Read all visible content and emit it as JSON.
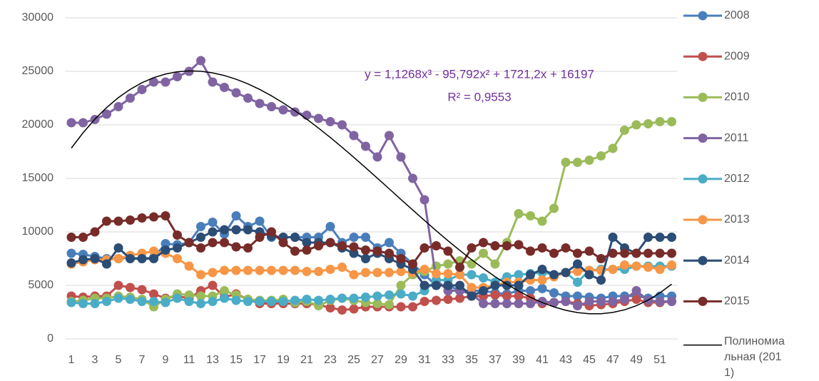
{
  "chart_data": {
    "type": "line",
    "annotations": [
      "y = 1,1268x³ - 95,792x² + 1721,2x + 16197",
      "R² = 0,9553"
    ],
    "annotation_color": "#7030a0",
    "categories": [
      1,
      null,
      3,
      null,
      5,
      null,
      7,
      null,
      9,
      null,
      11,
      null,
      13,
      null,
      15,
      null,
      17,
      null,
      19,
      null,
      21,
      null,
      23,
      null,
      25,
      null,
      27,
      null,
      29,
      null,
      31,
      null,
      33,
      null,
      35,
      null,
      37,
      null,
      39,
      null,
      41,
      null,
      43,
      null,
      45,
      null,
      47,
      null,
      49,
      null,
      51,
      null
    ],
    "ylim": [
      0,
      30000
    ],
    "yticks": [
      0,
      5000,
      10000,
      15000,
      20000,
      25000,
      30000
    ],
    "grid": true,
    "legend": "right",
    "series": [
      {
        "name": "2008",
        "color": "#4a7ebb",
        "markers": true,
        "values": [
          8000,
          7900,
          7700,
          7500,
          7500,
          7600,
          7500,
          7600,
          8900,
          8800,
          9000,
          10500,
          10900,
          9800,
          11500,
          10500,
          11000,
          9500,
          9500,
          9500,
          9500,
          9500,
          10500,
          9000,
          9500,
          9500,
          8500,
          9000,
          8000,
          7000,
          6000,
          5000,
          5000,
          4500,
          4500,
          4500,
          4300,
          4200,
          4500,
          4500,
          4700,
          4300,
          4000,
          4000,
          3900,
          3800,
          4000,
          4000,
          4000,
          3800,
          4000,
          4000
        ]
      },
      {
        "name": "2009",
        "color": "#c0504d",
        "markers": true,
        "values": [
          4000,
          3900,
          4000,
          4000,
          5000,
          4800,
          4600,
          4200,
          3800,
          4000,
          3800,
          4500,
          5000,
          3900,
          4200,
          3700,
          3300,
          3300,
          3300,
          3300,
          3300,
          3200,
          2900,
          2700,
          2800,
          3000,
          3000,
          3000,
          3000,
          3000,
          3500,
          3600,
          3700,
          3800,
          4000,
          4000,
          4100,
          4000,
          4000,
          3800,
          3300,
          3400,
          3500,
          3300,
          3100,
          3200,
          3300,
          3500,
          3700,
          3400,
          3400,
          3500
        ]
      },
      {
        "name": "2010",
        "color": "#9bbb59",
        "markers": true,
        "values": [
          3500,
          3600,
          3800,
          3800,
          4000,
          3900,
          3700,
          3000,
          3700,
          4200,
          4100,
          4000,
          4000,
          4500,
          4100,
          3700,
          3600,
          3600,
          3700,
          3400,
          3500,
          3100,
          3600,
          3800,
          3600,
          3400,
          3300,
          3200,
          5000,
          6000,
          6300,
          6800,
          7000,
          7300,
          7000,
          8000,
          7000,
          9000,
          11700,
          11500,
          11000,
          12200,
          16500,
          16500,
          16700,
          17100,
          17800,
          19500,
          20000,
          20100,
          20300,
          20300
        ]
      },
      {
        "name": "2011",
        "color": "#8064a2",
        "markers": true,
        "values": [
          20200,
          20200,
          20500,
          21000,
          21700,
          22500,
          23300,
          24000,
          24000,
          24500,
          25000,
          26000,
          24000,
          23500,
          23000,
          22500,
          22000,
          21700,
          21400,
          21200,
          20900,
          20600,
          20300,
          20000,
          19000,
          18000,
          17000,
          19000,
          17000,
          15000,
          13000,
          5500,
          4500,
          4500,
          4200,
          3300,
          3300,
          3300,
          3300,
          3300,
          3500,
          3400,
          3500,
          3100,
          3500,
          3500,
          3500,
          3700,
          4500,
          3600,
          3500,
          3500
        ]
      },
      {
        "name": "2012",
        "color": "#4bacc6",
        "markers": true,
        "values": [
          3400,
          3300,
          3300,
          3500,
          3800,
          3700,
          3500,
          3500,
          3400,
          3800,
          3500,
          3300,
          3500,
          3800,
          3600,
          3500,
          3500,
          3500,
          3500,
          3600,
          3700,
          3600,
          3700,
          3800,
          3800,
          3900,
          4000,
          4100,
          4200,
          4000,
          4500,
          5500,
          5500,
          6000,
          6000,
          5700,
          5300,
          5800,
          6000,
          6100,
          6200,
          6000,
          6200,
          5300,
          6400,
          6500,
          6500,
          6500,
          6800,
          6800,
          6800,
          6800
        ]
      },
      {
        "name": "2013",
        "color": "#f79646",
        "markers": true,
        "values": [
          7000,
          7200,
          7400,
          7400,
          7500,
          7800,
          8000,
          8200,
          8000,
          7500,
          6800,
          6000,
          6200,
          6400,
          6400,
          6400,
          6400,
          6400,
          6400,
          6400,
          6300,
          6300,
          6500,
          6700,
          6000,
          6200,
          6200,
          6200,
          6300,
          6200,
          6500,
          6100,
          6100,
          6000,
          4800,
          4800,
          5000,
          5300,
          5300,
          5500,
          5500,
          5800,
          6200,
          6300,
          6400,
          6400,
          6500,
          6900,
          6800,
          6700,
          6500,
          6900
        ]
      },
      {
        "name": "2014",
        "color": "#2c4d75",
        "markers": true,
        "values": [
          7100,
          7400,
          7500,
          7000,
          8500,
          7500,
          7500,
          7500,
          8300,
          8500,
          9000,
          9500,
          10000,
          10200,
          10200,
          10200,
          10000,
          9600,
          9500,
          9500,
          9000,
          9000,
          9000,
          8500,
          8000,
          7500,
          8000,
          7500,
          7000,
          6500,
          5000,
          5000,
          5000,
          5000,
          4000,
          4500,
          5000,
          5000,
          5000,
          6000,
          6500,
          6000,
          6200,
          7000,
          6000,
          5500,
          9500,
          8500,
          8000,
          9500,
          9500,
          9500
        ]
      },
      {
        "name": "2015",
        "color": "#772c2a",
        "markers": true,
        "values": [
          9500,
          9500,
          10000,
          11000,
          11000,
          11100,
          11300,
          11400,
          11500,
          9700,
          9000,
          8500,
          9000,
          9000,
          8600,
          8500,
          9500,
          10000,
          9000,
          8200,
          8300,
          8700,
          9000,
          8700,
          8600,
          8300,
          8200,
          8000,
          7500,
          7000,
          8500,
          8700,
          8200,
          6700,
          8500,
          9000,
          8700,
          8700,
          8800,
          8200,
          8500,
          8000,
          8500,
          8000,
          8200,
          7500,
          8000,
          8000,
          8000,
          8000,
          8000,
          8000
        ]
      },
      {
        "name": "Полиномиальная (2011)",
        "color": "#000000",
        "markers": false,
        "values": [
          17824,
          19265,
          20529,
          21621,
          22549,
          23319,
          23938,
          24413,
          24750,
          24957,
          25039,
          25005,
          24859,
          24611,
          24265,
          23829,
          23310,
          22714,
          22048,
          21319,
          20533,
          19698,
          18820,
          17907,
          16963,
          15997,
          15016,
          14025,
          13032,
          12044,
          11067,
          10107,
          9173,
          8270,
          7405,
          6586,
          5818,
          5109,
          4464,
          3893,
          3399,
          2992,
          2676,
          2458,
          2349,
          2348,
          2473,
          2720,
          3101,
          3627,
          4301,
          5119
        ]
      }
    ]
  }
}
